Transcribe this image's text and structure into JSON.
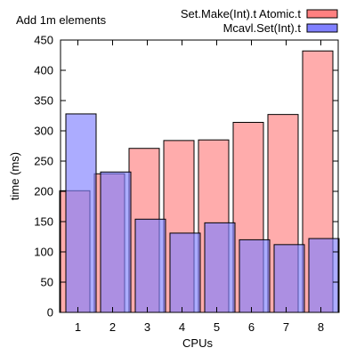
{
  "chart_data": {
    "type": "bar",
    "title": "Add 1m elements",
    "xlabel": "CPUs",
    "ylabel": "time (ms)",
    "ylim": [
      0,
      450
    ],
    "yticks": [
      0,
      50,
      100,
      150,
      200,
      250,
      300,
      350,
      400,
      450
    ],
    "categories": [
      "1",
      "2",
      "3",
      "4",
      "5",
      "6",
      "7",
      "8"
    ],
    "legend_position": "top-right",
    "grid": false,
    "series": [
      {
        "name": "Set.Make(Int).t Atomic.t",
        "color": "#ff8080",
        "values": [
          201,
          229,
          271,
          284,
          285,
          314,
          327,
          432
        ]
      },
      {
        "name": "Mcavl.Set(Int).t",
        "color": "#8080ff",
        "values": [
          328,
          232,
          154,
          131,
          148,
          120,
          112,
          122
        ]
      }
    ]
  }
}
